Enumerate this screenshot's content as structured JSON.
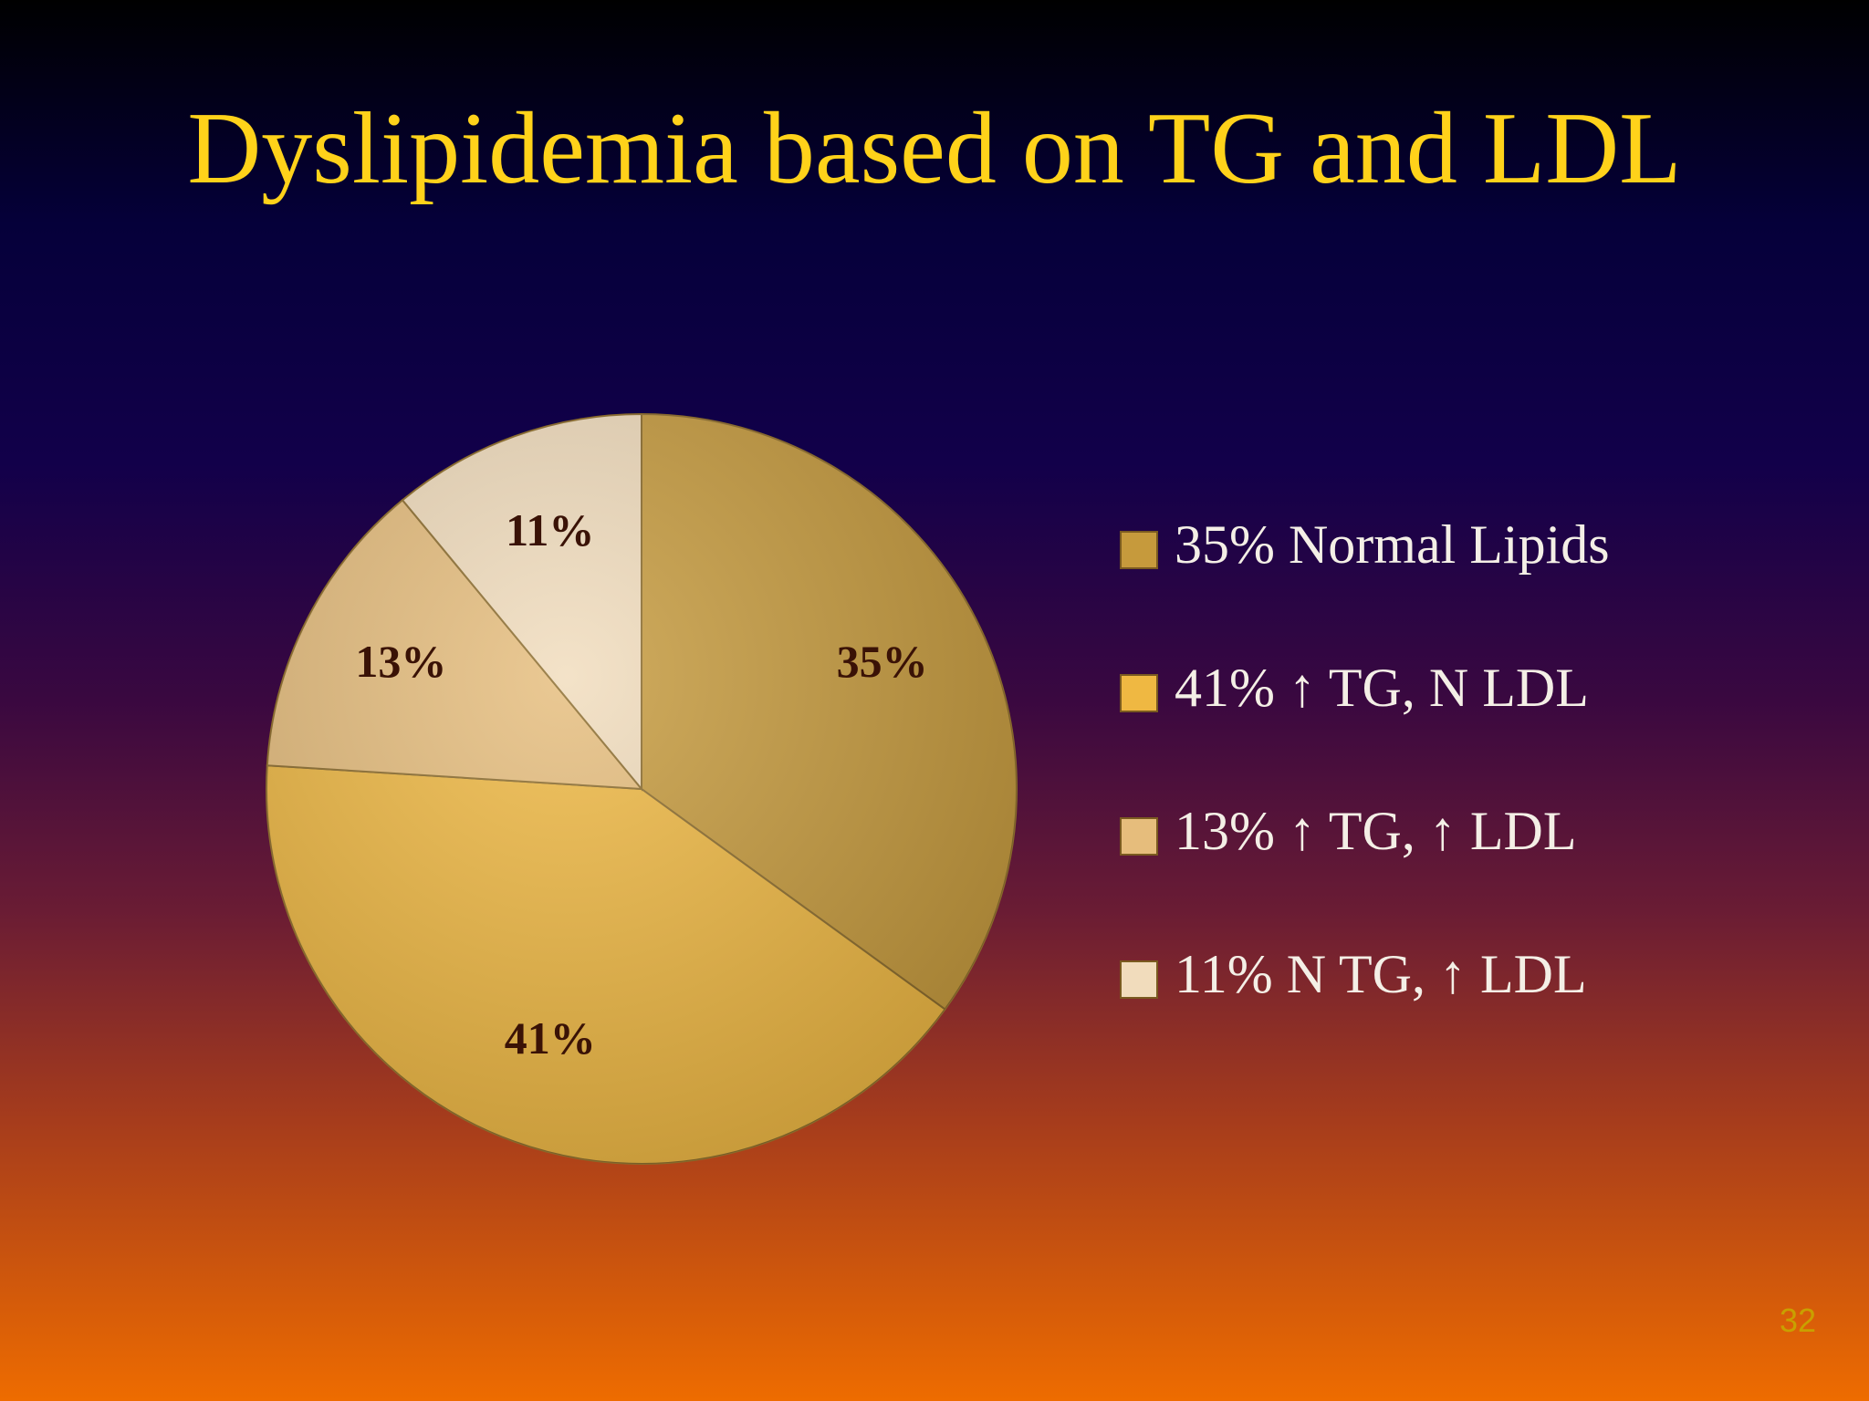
{
  "chart_data": {
    "type": "pie",
    "title": "Dyslipidemia based on TG and LDL",
    "categories": [
      "35% Normal Lipids",
      "41% ↑ TG, N  LDL",
      "13% ↑ TG, ↑  LDL",
      "11% N TG, ↑  LDL"
    ],
    "values": [
      35,
      41,
      13,
      11
    ],
    "value_labels": [
      "35%",
      "41%",
      "13%",
      "11%"
    ],
    "colors": [
      "#c69a3c",
      "#efb842",
      "#e6bd7c",
      "#f1dcbc"
    ],
    "legend": "right"
  },
  "page_number": "32"
}
